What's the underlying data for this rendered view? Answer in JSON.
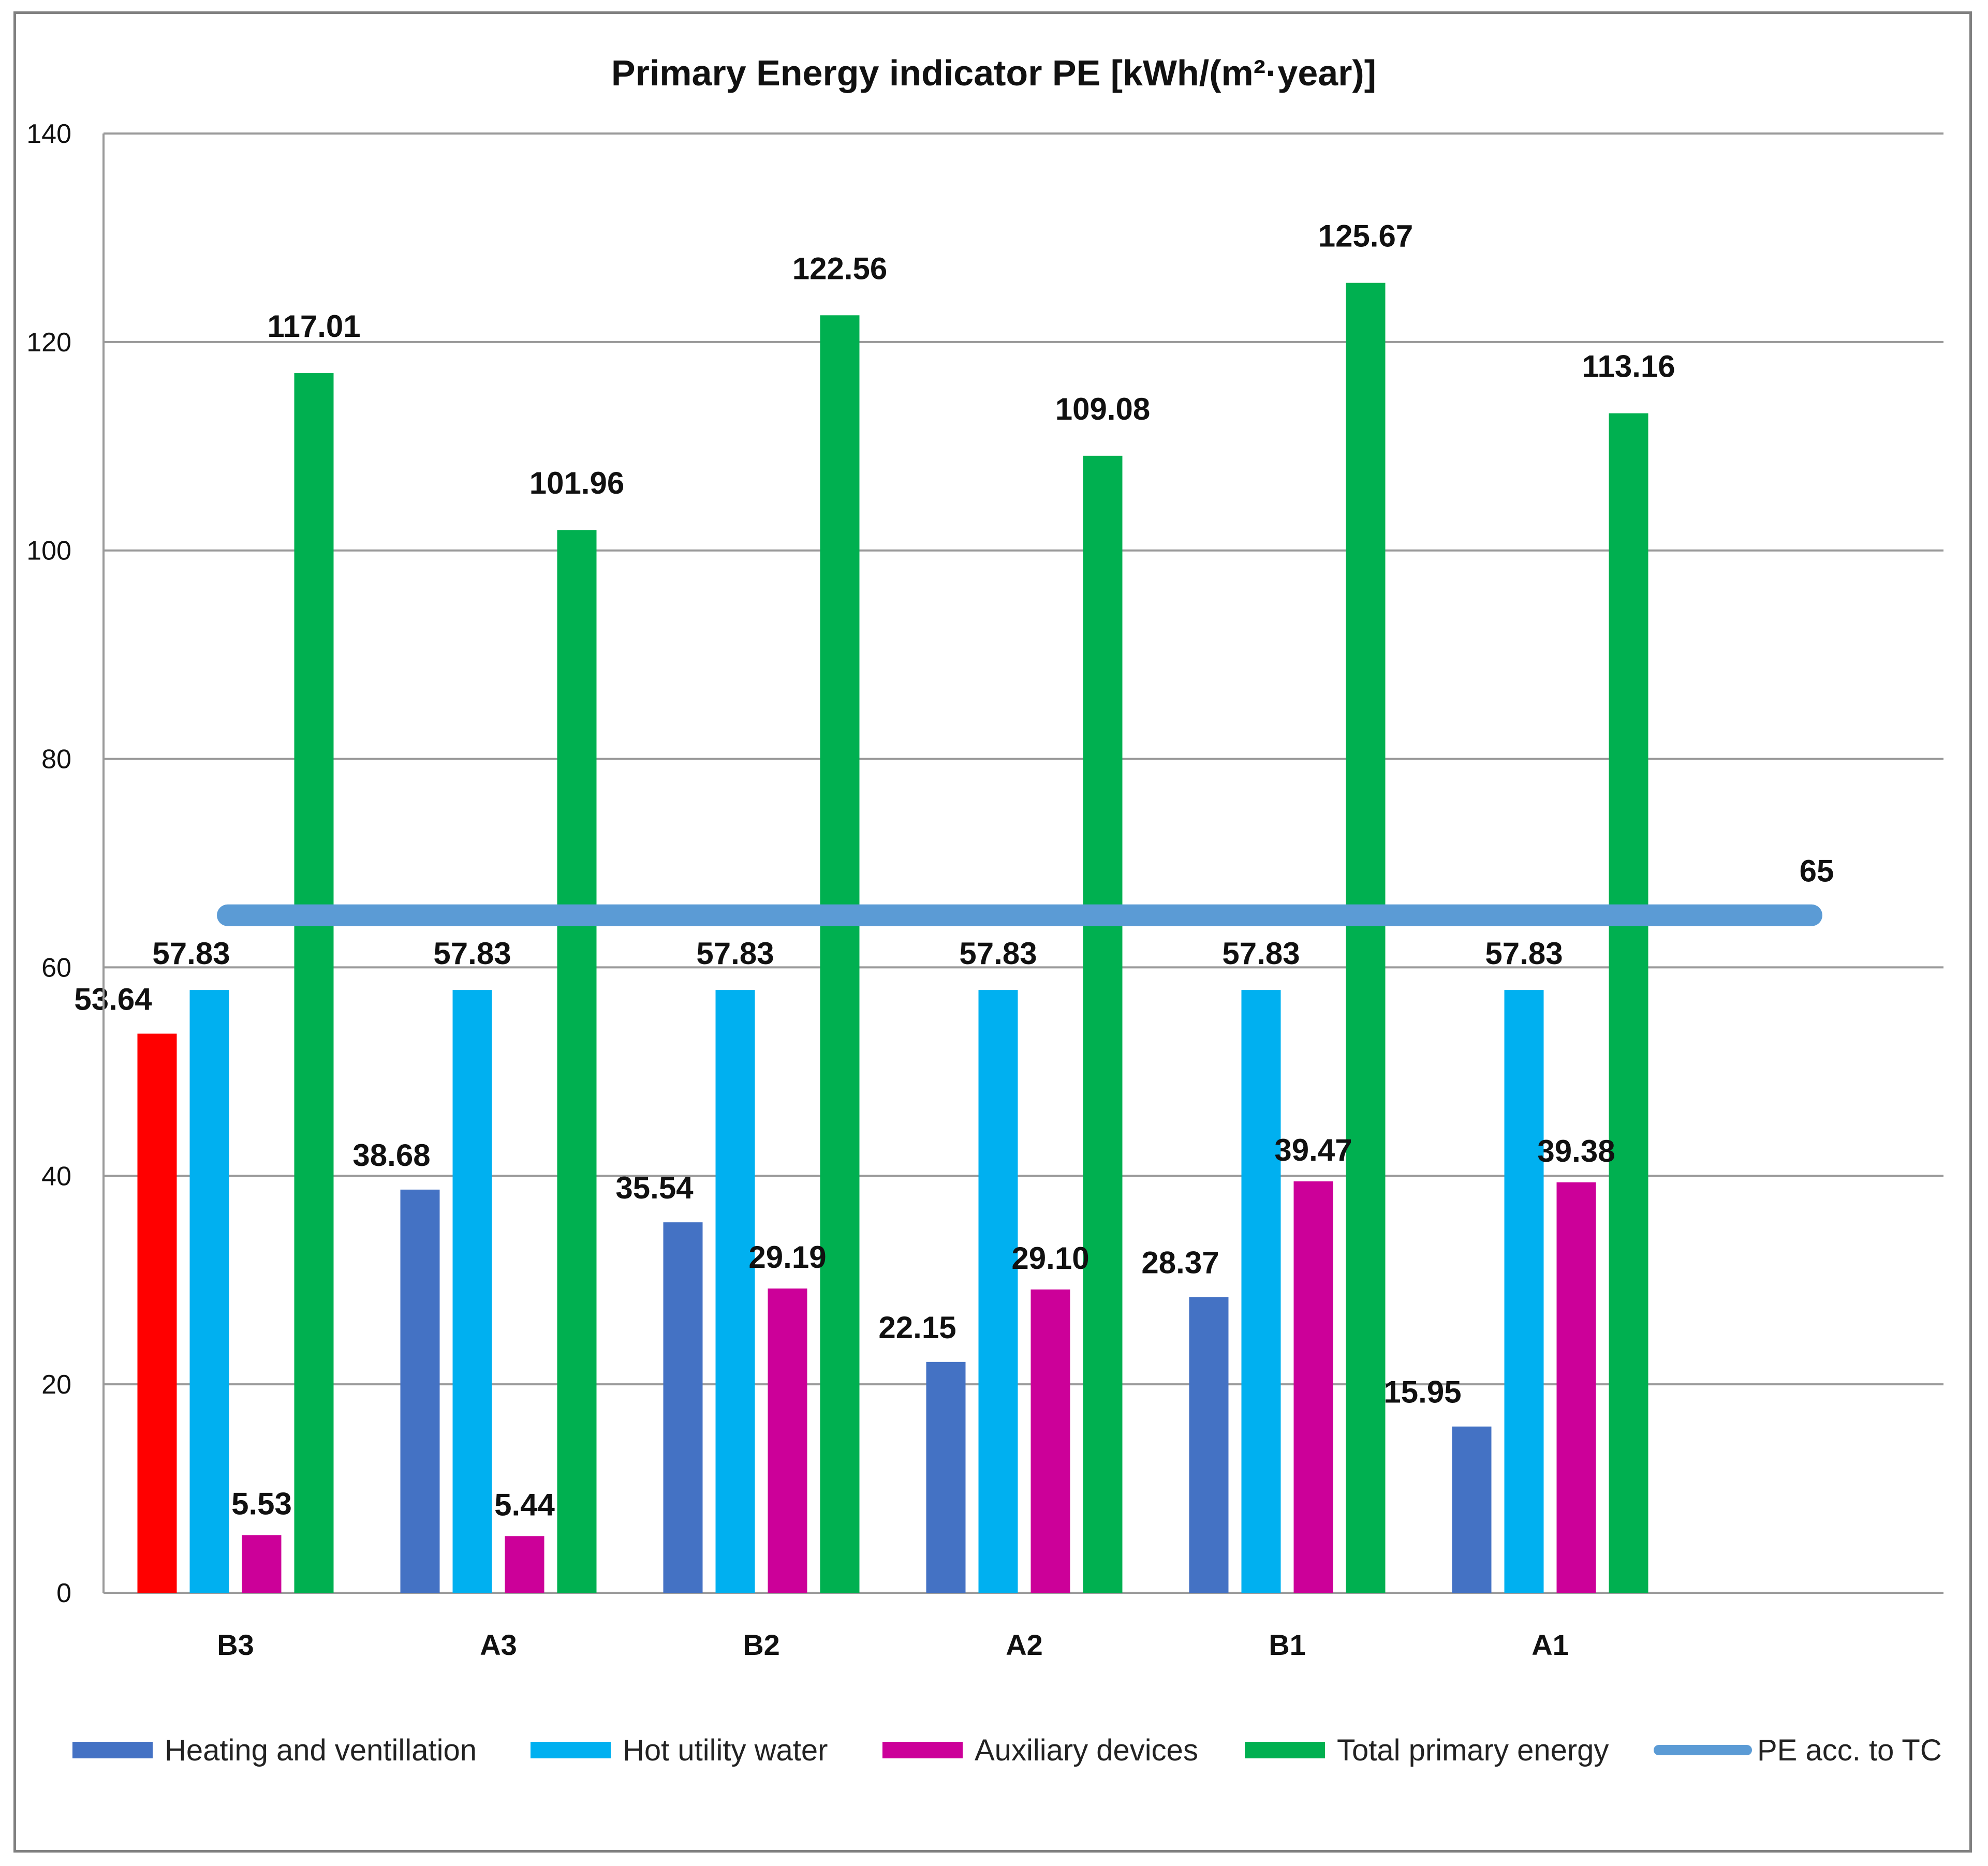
{
  "chart_data": {
    "type": "bar",
    "title": "Primary Energy indicator PE [kWh/(m²·year)]",
    "xlabel": "",
    "ylabel": "",
    "ylim": [
      0,
      140
    ],
    "yticks": [
      0,
      20,
      40,
      60,
      80,
      100,
      120,
      140
    ],
    "grid": true,
    "legend_position": "bottom",
    "categories": [
      "B3",
      "A3",
      "B2",
      "A2",
      "B1",
      "A1"
    ],
    "series": [
      {
        "name": "Heating and ventillation",
        "color": "#4472C4",
        "values": [
          53.64,
          38.68,
          35.54,
          22.15,
          28.37,
          15.95
        ],
        "labels": [
          "53.64",
          "38.68",
          "35.54",
          "22.15",
          "28.37",
          "15.95"
        ],
        "point_colors": [
          "#FF0000",
          null,
          null,
          null,
          null,
          null
        ]
      },
      {
        "name": "Hot utility water",
        "color": "#00B0F0",
        "values": [
          57.83,
          57.83,
          57.83,
          57.83,
          57.83,
          57.83
        ],
        "labels": [
          "57.83",
          "57.83",
          "57.83",
          "57.83",
          "57.83",
          "57.83"
        ]
      },
      {
        "name": "Auxiliary devices",
        "color": "#CC0099",
        "values": [
          5.53,
          5.44,
          29.19,
          29.1,
          39.47,
          39.38
        ],
        "labels": [
          "5.53",
          "5.44",
          "29.19",
          "29.10",
          "39.47",
          "39.38"
        ]
      },
      {
        "name": "Total primary energy",
        "color": "#00B050",
        "values": [
          117.01,
          101.96,
          122.56,
          109.08,
          125.67,
          113.16
        ],
        "labels": [
          "117.01",
          "101.96",
          "122.56",
          "109.08",
          "125.67",
          "113.16"
        ]
      }
    ],
    "reference_line": {
      "name": "PE acc. to TC",
      "type": "line",
      "value": 65,
      "label": "65",
      "color": "#5B9BD5"
    }
  }
}
